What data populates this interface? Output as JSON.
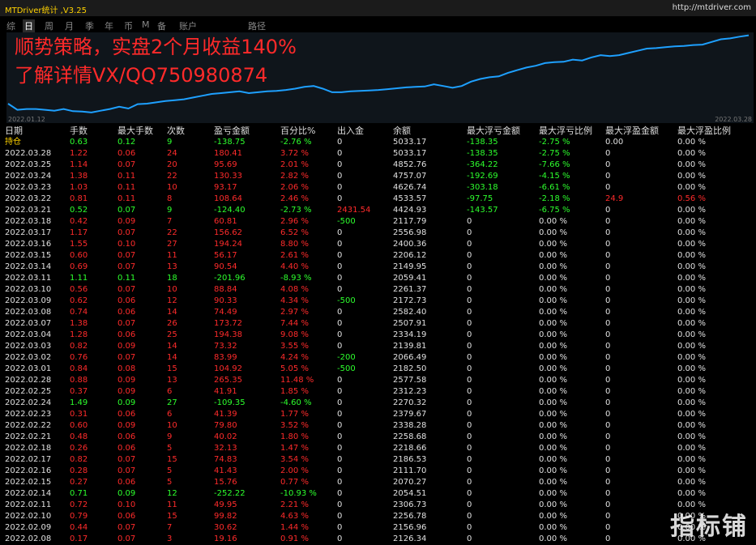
{
  "app": {
    "title": "MTDriver统计 ,V3.25",
    "url": "http://mtdriver.com"
  },
  "tabs": [
    "综",
    "日",
    "周",
    "月",
    "季",
    "年",
    "币",
    "M",
    "备",
    "账户",
    "路径"
  ],
  "active_tab": "日",
  "ad": {
    "line1": "顺势策略，实盘2个月收益140%",
    "line2": "了解详情VX/QQ750980874"
  },
  "chart": {
    "start_date": "2022.01.12",
    "end_date": "2022.03.28",
    "line_color": "#1ea0ff"
  },
  "chart_data": {
    "type": "line",
    "series": [
      {
        "values": [
          2800,
          2660,
          2680,
          2680,
          2660,
          2640,
          2680,
          2630,
          2620,
          2600,
          2640,
          2680,
          2730,
          2690,
          2790,
          2800,
          2830,
          2860,
          2880,
          2900,
          2940,
          2980,
          3020,
          3040,
          3060,
          3080,
          3040,
          3060,
          3080,
          3090,
          3110,
          3140,
          3180,
          3200,
          3140,
          3060,
          3060,
          3080,
          3090,
          3100,
          3110,
          3130,
          3150,
          3170,
          3180,
          3190,
          3240,
          3200,
          3160,
          3200,
          3300,
          3360,
          3400,
          3420,
          3500,
          3560,
          3620,
          3660,
          3720,
          3740,
          3750,
          3800,
          3780,
          3850,
          3900,
          3880,
          3900,
          3950,
          4000,
          4050,
          4060,
          4080,
          4100,
          4110,
          4130,
          4140,
          4200,
          4260,
          4280,
          4320,
          4350
        ]
      }
    ]
  },
  "table": {
    "headers": [
      "日期",
      "手数",
      "最大手数",
      "次数",
      "盈亏金额",
      "百分比%",
      "出入金",
      "余额",
      "最大浮亏金额",
      "最大浮亏比例",
      "最大浮盈金额",
      "最大浮盈比例"
    ],
    "rows": [
      [
        "持仓",
        "0.63",
        "0.12",
        "9",
        "-138.75",
        "-2.76 %",
        "0",
        "5033.17",
        "-138.35",
        "-2.75 %",
        "0.00",
        "0.00 %"
      ],
      [
        "2022.03.28",
        "1.22",
        "0.06",
        "24",
        "180.41",
        "3.72 %",
        "0",
        "5033.17",
        "-138.35",
        "-2.75 %",
        "0",
        "0.00 %"
      ],
      [
        "2022.03.25",
        "1.14",
        "0.07",
        "20",
        "95.69",
        "2.01 %",
        "0",
        "4852.76",
        "-364.22",
        "-7.66 %",
        "0",
        "0.00 %"
      ],
      [
        "2022.03.24",
        "1.38",
        "0.11",
        "22",
        "130.33",
        "2.82 %",
        "0",
        "4757.07",
        "-192.69",
        "-4.15 %",
        "0",
        "0.00 %"
      ],
      [
        "2022.03.23",
        "1.03",
        "0.11",
        "10",
        "93.17",
        "2.06 %",
        "0",
        "4626.74",
        "-303.18",
        "-6.61 %",
        "0",
        "0.00 %"
      ],
      [
        "2022.03.22",
        "0.81",
        "0.11",
        "8",
        "108.64",
        "2.46 %",
        "0",
        "4533.57",
        "-97.75",
        "-2.18 %",
        "24.9",
        "0.56 %"
      ],
      [
        "2022.03.21",
        "0.52",
        "0.07",
        "9",
        "-124.40",
        "-2.73 %",
        "2431.54",
        "4424.93",
        "-143.57",
        "-6.75 %",
        "0",
        "0.00 %"
      ],
      [
        "2022.03.18",
        "0.42",
        "0.09",
        "7",
        "60.81",
        "2.96 %",
        "-500",
        "2117.79",
        "0",
        "0.00 %",
        "0",
        "0.00 %"
      ],
      [
        "2022.03.17",
        "1.17",
        "0.07",
        "22",
        "156.62",
        "6.52 %",
        "0",
        "2556.98",
        "0",
        "0.00 %",
        "0",
        "0.00 %"
      ],
      [
        "2022.03.16",
        "1.55",
        "0.10",
        "27",
        "194.24",
        "8.80 %",
        "0",
        "2400.36",
        "0",
        "0.00 %",
        "0",
        "0.00 %"
      ],
      [
        "2022.03.15",
        "0.60",
        "0.07",
        "11",
        "56.17",
        "2.61 %",
        "0",
        "2206.12",
        "0",
        "0.00 %",
        "0",
        "0.00 %"
      ],
      [
        "2022.03.14",
        "0.69",
        "0.07",
        "13",
        "90.54",
        "4.40 %",
        "0",
        "2149.95",
        "0",
        "0.00 %",
        "0",
        "0.00 %"
      ],
      [
        "2022.03.11",
        "1.11",
        "0.11",
        "18",
        "-201.96",
        "-8.93 %",
        "0",
        "2059.41",
        "0",
        "0.00 %",
        "0",
        "0.00 %"
      ],
      [
        "2022.03.10",
        "0.56",
        "0.07",
        "10",
        "88.84",
        "4.08 %",
        "0",
        "2261.37",
        "0",
        "0.00 %",
        "0",
        "0.00 %"
      ],
      [
        "2022.03.09",
        "0.62",
        "0.06",
        "12",
        "90.33",
        "4.34 %",
        "-500",
        "2172.73",
        "0",
        "0.00 %",
        "0",
        "0.00 %"
      ],
      [
        "2022.03.08",
        "0.74",
        "0.06",
        "14",
        "74.49",
        "2.97 %",
        "0",
        "2582.40",
        "0",
        "0.00 %",
        "0",
        "0.00 %"
      ],
      [
        "2022.03.07",
        "1.38",
        "0.07",
        "26",
        "173.72",
        "7.44 %",
        "0",
        "2507.91",
        "0",
        "0.00 %",
        "0",
        "0.00 %"
      ],
      [
        "2022.03.04",
        "1.28",
        "0.06",
        "25",
        "194.38",
        "9.08 %",
        "0",
        "2334.19",
        "0",
        "0.00 %",
        "0",
        "0.00 %"
      ],
      [
        "2022.03.03",
        "0.82",
        "0.09",
        "14",
        "73.32",
        "3.55 %",
        "0",
        "2139.81",
        "0",
        "0.00 %",
        "0",
        "0.00 %"
      ],
      [
        "2022.03.02",
        "0.76",
        "0.07",
        "14",
        "83.99",
        "4.24 %",
        "-200",
        "2066.49",
        "0",
        "0.00 %",
        "0",
        "0.00 %"
      ],
      [
        "2022.03.01",
        "0.84",
        "0.08",
        "15",
        "104.92",
        "5.05 %",
        "-500",
        "2182.50",
        "0",
        "0.00 %",
        "0",
        "0.00 %"
      ],
      [
        "2022.02.28",
        "0.88",
        "0.09",
        "13",
        "265.35",
        "11.48 %",
        "0",
        "2577.58",
        "0",
        "0.00 %",
        "0",
        "0.00 %"
      ],
      [
        "2022.02.25",
        "0.37",
        "0.09",
        "6",
        "41.91",
        "1.85 %",
        "0",
        "2312.23",
        "0",
        "0.00 %",
        "0",
        "0.00 %"
      ],
      [
        "2022.02.24",
        "1.49",
        "0.09",
        "27",
        "-109.35",
        "-4.60 %",
        "0",
        "2270.32",
        "0",
        "0.00 %",
        "0",
        "0.00 %"
      ],
      [
        "2022.02.23",
        "0.31",
        "0.06",
        "6",
        "41.39",
        "1.77 %",
        "0",
        "2379.67",
        "0",
        "0.00 %",
        "0",
        "0.00 %"
      ],
      [
        "2022.02.22",
        "0.60",
        "0.09",
        "10",
        "79.80",
        "3.52 %",
        "0",
        "2338.28",
        "0",
        "0.00 %",
        "0",
        "0.00 %"
      ],
      [
        "2022.02.21",
        "0.48",
        "0.06",
        "9",
        "40.02",
        "1.80 %",
        "0",
        "2258.68",
        "0",
        "0.00 %",
        "0",
        "0.00 %"
      ],
      [
        "2022.02.18",
        "0.26",
        "0.06",
        "5",
        "32.13",
        "1.47 %",
        "0",
        "2218.66",
        "0",
        "0.00 %",
        "0",
        "0.00 %"
      ],
      [
        "2022.02.17",
        "0.82",
        "0.07",
        "15",
        "74.83",
        "3.54 %",
        "0",
        "2186.53",
        "0",
        "0.00 %",
        "0",
        "0.00 %"
      ],
      [
        "2022.02.16",
        "0.28",
        "0.07",
        "5",
        "41.43",
        "2.00 %",
        "0",
        "2111.70",
        "0",
        "0.00 %",
        "0",
        "0.00 %"
      ],
      [
        "2022.02.15",
        "0.27",
        "0.06",
        "5",
        "15.76",
        "0.77 %",
        "0",
        "2070.27",
        "0",
        "0.00 %",
        "0",
        "0.00 %"
      ],
      [
        "2022.02.14",
        "0.71",
        "0.09",
        "12",
        "-252.22",
        "-10.93 %",
        "0",
        "2054.51",
        "0",
        "0.00 %",
        "0",
        "0.00 %"
      ],
      [
        "2022.02.11",
        "0.72",
        "0.10",
        "11",
        "49.95",
        "2.21 %",
        "0",
        "2306.73",
        "0",
        "0.00 %",
        "0",
        "0.00 %"
      ],
      [
        "2022.02.10",
        "0.79",
        "0.06",
        "15",
        "99.82",
        "4.63 %",
        "0",
        "2256.78",
        "0",
        "0.00 %",
        "0",
        "0.00 %"
      ],
      [
        "2022.02.09",
        "0.44",
        "0.07",
        "7",
        "30.62",
        "1.44 %",
        "0",
        "2156.96",
        "0",
        "0.00 %",
        "0",
        "0.00 %"
      ],
      [
        "2022.02.08",
        "0.17",
        "0.07",
        "3",
        "19.16",
        "0.91 %",
        "0",
        "2126.34",
        "0",
        "0.00 %",
        "0",
        "0.00 %"
      ]
    ]
  },
  "watermark": "指标铺"
}
